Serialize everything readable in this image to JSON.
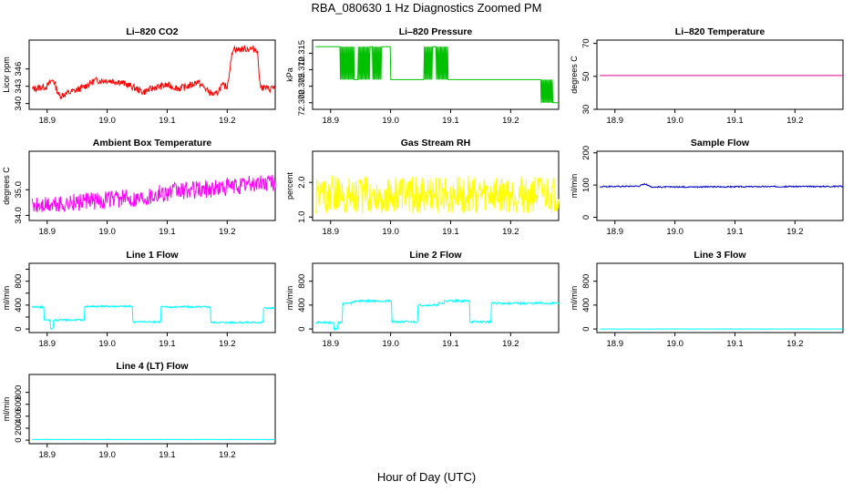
{
  "main_title": "RBA_080630  1 Hz Diagnostics Zoomed PM",
  "x_axis_title": "Hour of Day (UTC)",
  "chart_data": [
    {
      "type": "line",
      "title": "Li–820 CO2",
      "ylabel": "Licor ppm",
      "color": "#ff0000",
      "xlim": [
        18.87,
        19.28
      ],
      "xticks": [
        18.9,
        19.0,
        19.1,
        19.2
      ],
      "xtick_labels": [
        "18.9",
        "19.0",
        "19.1",
        "19.2"
      ],
      "ylim": [
        339,
        351
      ],
      "yticks": [
        340,
        343,
        346
      ],
      "ytick_labels": [
        "340",
        "343",
        "346"
      ],
      "x": [
        18.875,
        18.9,
        18.91,
        18.92,
        18.94,
        18.96,
        18.98,
        19.0,
        19.02,
        19.04,
        19.06,
        19.08,
        19.1,
        19.12,
        19.14,
        19.15,
        19.17,
        19.18,
        19.19,
        19.2,
        19.21,
        19.215,
        19.23,
        19.25,
        19.255,
        19.26,
        19.27,
        19.28
      ],
      "y": [
        342.5,
        343,
        344.2,
        341.3,
        342,
        342.8,
        344,
        344,
        343.8,
        343,
        342,
        342.8,
        343.2,
        342.6,
        343.2,
        343.8,
        342,
        341.4,
        343,
        343,
        349.8,
        349.3,
        349.5,
        349.4,
        343,
        342.8,
        342.5,
        343
      ],
      "noise": 0.6
    },
    {
      "type": "step",
      "title": "Li–820 Pressure",
      "ylabel": "kPa",
      "color": "#00c000",
      "xlim": [
        18.87,
        19.28
      ],
      "xticks": [
        18.9,
        19.0,
        19.1,
        19.2
      ],
      "xtick_labels": [
        "18.9",
        "19.0",
        "19.1",
        "19.2"
      ],
      "ylim": [
        72.298,
        72.319
      ],
      "yticks": [
        72.3,
        72.305,
        72.31,
        72.315
      ],
      "ytick_labels": [
        "72.300",
        "72.305",
        "72.310",
        "72.315"
      ],
      "levels": [
        72.307,
        72.317,
        72.3
      ],
      "x": [
        18.875,
        18.91,
        18.915,
        18.94,
        18.945,
        18.965,
        18.97,
        18.98,
        18.985,
        19.0,
        19.05,
        19.055,
        19.07,
        19.075,
        19.095,
        19.1,
        19.24,
        19.25,
        19.26,
        19.27,
        19.28
      ],
      "y": [
        72.317,
        72.317,
        72.307,
        72.307,
        72.317,
        72.317,
        72.307,
        72.307,
        72.317,
        72.307,
        72.307,
        72.317,
        72.317,
        72.307,
        72.307,
        72.307,
        72.307,
        72.3,
        72.307,
        72.3,
        72.3
      ],
      "noise": 0
    },
    {
      "type": "line",
      "title": "Li–820 Temperature",
      "ylabel": "degrees C",
      "color": "#e0009a",
      "xlim": [
        18.87,
        19.28
      ],
      "xticks": [
        18.9,
        19.0,
        19.1,
        19.2
      ],
      "xtick_labels": [
        "18.9",
        "19.0",
        "19.1",
        "19.2"
      ],
      "ylim": [
        30,
        72
      ],
      "yticks": [
        30,
        50,
        70
      ],
      "ytick_labels": [
        "30",
        "50",
        "70"
      ],
      "x": [
        18.875,
        19.28
      ],
      "y": [
        50.5,
        50.5
      ],
      "noise": 0
    },
    {
      "type": "line",
      "title": "Ambient Box Temperature",
      "ylabel": "degrees C",
      "color": "#ff00ff",
      "xlim": [
        18.87,
        19.28
      ],
      "xticks": [
        18.9,
        19.0,
        19.1,
        19.2
      ],
      "xtick_labels": [
        "18.9",
        "19.0",
        "19.1",
        "19.2"
      ],
      "ylim": [
        33.8,
        36.5
      ],
      "yticks": [
        34.0,
        35.0
      ],
      "ytick_labels": [
        "34.0",
        "35.0"
      ],
      "x": [
        18.875,
        18.9,
        18.95,
        19.0,
        19.05,
        19.1,
        19.15,
        19.2,
        19.25,
        19.28
      ],
      "y": [
        34.35,
        34.4,
        34.5,
        34.6,
        34.7,
        34.9,
        35.0,
        35.1,
        35.25,
        35.3
      ],
      "noise": 0.35
    },
    {
      "type": "line",
      "title": "Gas Stream RH",
      "ylabel": "percent",
      "color": "#ffff00",
      "xlim": [
        18.87,
        19.28
      ],
      "xticks": [
        18.9,
        19.0,
        19.1,
        19.2
      ],
      "xtick_labels": [
        "18.9",
        "19.0",
        "19.1",
        "19.2"
      ],
      "ylim": [
        0.9,
        2.9
      ],
      "yticks": [
        1.0,
        2.0
      ],
      "ytick_labels": [
        "1.0",
        "2.0"
      ],
      "x": [
        18.875,
        19.28
      ],
      "y": [
        1.65,
        1.65
      ],
      "noise": 0.55
    },
    {
      "type": "line",
      "title": "Sample Flow",
      "ylabel": "ml/min",
      "color": "#0000cc",
      "xlim": [
        18.87,
        19.28
      ],
      "xticks": [
        18.9,
        19.0,
        19.1,
        19.2
      ],
      "xtick_labels": [
        "18.9",
        "19.0",
        "19.1",
        "19.2"
      ],
      "ylim": [
        -10,
        205
      ],
      "yticks": [
        0,
        100,
        200
      ],
      "ytick_labels": [
        "0",
        "100",
        "200"
      ],
      "x": [
        18.875,
        18.94,
        18.95,
        18.96,
        19.28
      ],
      "y": [
        95,
        97,
        104,
        94,
        96
      ],
      "noise": 2
    },
    {
      "type": "step",
      "title": "Line 1 Flow",
      "ylabel": "ml/min",
      "color": "#00ffff",
      "xlim": [
        18.87,
        19.28
      ],
      "xticks": [
        18.9,
        19.0,
        19.1,
        19.2
      ],
      "xtick_labels": [
        "18.9",
        "19.0",
        "19.1",
        "19.2"
      ],
      "ylim": [
        -60,
        1100
      ],
      "yticks": [
        0,
        200,
        400,
        600,
        800,
        1000
      ],
      "ytick_labels": [
        "0",
        "400",
        "800"
      ],
      "ytick_values": [
        0,
        400,
        800
      ],
      "x": [
        18.875,
        18.89,
        18.895,
        18.905,
        18.91,
        18.96,
        18.962,
        19.04,
        19.042,
        19.08,
        19.09,
        19.13,
        19.17,
        19.172,
        19.255,
        19.26,
        19.28
      ],
      "y": [
        370,
        370,
        150,
        0,
        150,
        150,
        380,
        380,
        120,
        120,
        370,
        370,
        370,
        110,
        110,
        350,
        350
      ],
      "noise": 15
    },
    {
      "type": "step",
      "title": "Line 2 Flow",
      "ylabel": "ml/min",
      "color": "#00ffff",
      "xlim": [
        18.87,
        19.28
      ],
      "xticks": [
        18.9,
        19.0,
        19.1,
        19.2
      ],
      "xtick_labels": [
        "18.9",
        "19.0",
        "19.1",
        "19.2"
      ],
      "ylim": [
        -60,
        1100
      ],
      "yticks": [
        0,
        400,
        800
      ],
      "ytick_labels": [
        "0",
        "400",
        "800"
      ],
      "x": [
        18.875,
        18.89,
        18.905,
        18.912,
        18.92,
        18.935,
        18.94,
        19.0,
        19.002,
        19.04,
        19.045,
        19.08,
        19.09,
        19.13,
        19.132,
        19.165,
        19.168,
        19.28
      ],
      "y": [
        110,
        110,
        0,
        110,
        430,
        450,
        470,
        470,
        120,
        120,
        400,
        430,
        470,
        470,
        120,
        120,
        430,
        460
      ],
      "noise": 18
    },
    {
      "type": "line",
      "title": "Line 3 Flow",
      "ylabel": "ml/min",
      "color": "#00ffff",
      "xlim": [
        18.87,
        19.28
      ],
      "xticks": [
        18.9,
        19.0,
        19.1,
        19.2
      ],
      "xtick_labels": [
        "18.9",
        "19.0",
        "19.1",
        "19.2"
      ],
      "ylim": [
        -60,
        1100
      ],
      "yticks": [
        0,
        400,
        800
      ],
      "ytick_labels": [
        "0",
        "400",
        "800"
      ],
      "x": [
        18.875,
        19.28
      ],
      "y": [
        0,
        0
      ],
      "noise": 3
    },
    {
      "type": "line",
      "title": "Line 4 (LT) Flow",
      "ylabel": "ml/min",
      "color": "#00ffff",
      "xlim": [
        18.87,
        19.28
      ],
      "xticks": [
        18.9,
        19.0,
        19.1,
        19.2
      ],
      "xtick_labels": [
        "18.9",
        "19.0",
        "19.1",
        "19.2"
      ],
      "ylim": [
        -60,
        1100
      ],
      "yticks": [
        0,
        200,
        400,
        600,
        800
      ],
      "ytick_labels": [
        "0",
        "200",
        "400",
        "600",
        "800"
      ],
      "x": [
        18.875,
        19.28
      ],
      "y": [
        10,
        10
      ],
      "noise": 3
    }
  ]
}
